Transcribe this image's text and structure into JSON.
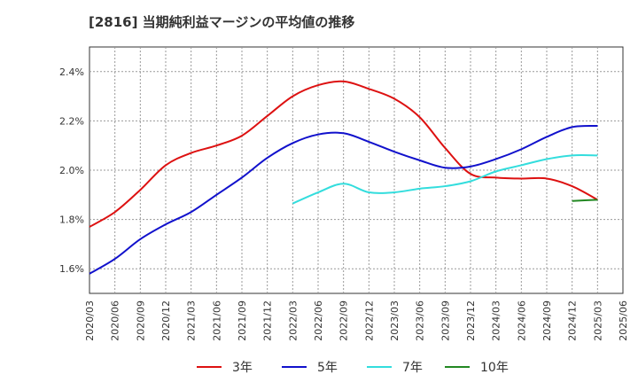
{
  "chart_data": {
    "type": "line",
    "title": "[2816]  当期純利益マージンの平均値の推移",
    "xlabel": "",
    "ylabel": "",
    "ylim": [
      1.5,
      2.5
    ],
    "yticks": [
      1.6,
      1.8,
      2.0,
      2.2,
      2.4
    ],
    "ytick_labels": [
      "1.6%",
      "1.8%",
      "2.0%",
      "2.2%",
      "2.4%"
    ],
    "xlim": [
      "2020/03",
      "2025/06"
    ],
    "xtick_labels": [
      "2020/03",
      "2020/06",
      "2020/09",
      "2020/12",
      "2021/03",
      "2021/06",
      "2021/09",
      "2021/12",
      "2022/03",
      "2022/06",
      "2022/09",
      "2022/12",
      "2023/03",
      "2023/06",
      "2023/09",
      "2023/12",
      "2024/03",
      "2024/06",
      "2024/09",
      "2024/12",
      "2025/03",
      "2025/06"
    ],
    "grid": true,
    "legend_position": "bottom",
    "series": [
      {
        "name": "3年",
        "color": "#dd1111",
        "x": [
          "2020/03",
          "2020/06",
          "2020/09",
          "2020/12",
          "2021/03",
          "2021/06",
          "2021/09",
          "2021/12",
          "2022/03",
          "2022/06",
          "2022/09",
          "2022/12",
          "2023/03",
          "2023/06",
          "2023/09",
          "2023/12",
          "2024/03",
          "2024/06",
          "2024/09",
          "2024/12",
          "2025/03"
        ],
        "values": [
          1.77,
          1.83,
          1.92,
          2.02,
          2.07,
          2.1,
          2.14,
          2.22,
          2.3,
          2.345,
          2.36,
          2.33,
          2.29,
          2.215,
          2.09,
          1.985,
          1.97,
          1.966,
          1.966,
          1.935,
          1.88
        ]
      },
      {
        "name": "5年",
        "color": "#1111cc",
        "x": [
          "2020/03",
          "2020/06",
          "2020/09",
          "2020/12",
          "2021/03",
          "2021/06",
          "2021/09",
          "2021/12",
          "2022/03",
          "2022/06",
          "2022/09",
          "2022/12",
          "2023/03",
          "2023/06",
          "2023/09",
          "2023/12",
          "2024/03",
          "2024/06",
          "2024/09",
          "2024/12",
          "2025/03"
        ],
        "values": [
          1.58,
          1.64,
          1.72,
          1.78,
          1.83,
          1.9,
          1.97,
          2.05,
          2.11,
          2.145,
          2.15,
          2.115,
          2.075,
          2.04,
          2.01,
          2.015,
          2.045,
          2.085,
          2.135,
          2.175,
          2.18
        ]
      },
      {
        "name": "7年",
        "color": "#33dddd",
        "x": [
          "2022/03",
          "2022/06",
          "2022/09",
          "2022/12",
          "2023/03",
          "2023/06",
          "2023/09",
          "2023/12",
          "2024/03",
          "2024/06",
          "2024/09",
          "2024/12",
          "2025/03"
        ],
        "values": [
          1.865,
          1.91,
          1.945,
          1.91,
          1.91,
          1.925,
          1.935,
          1.955,
          1.995,
          2.02,
          2.045,
          2.06,
          2.06
        ]
      },
      {
        "name": "10年",
        "color": "#228822",
        "x": [
          "2024/12",
          "2025/03"
        ],
        "values": [
          1.875,
          1.88
        ]
      }
    ]
  }
}
